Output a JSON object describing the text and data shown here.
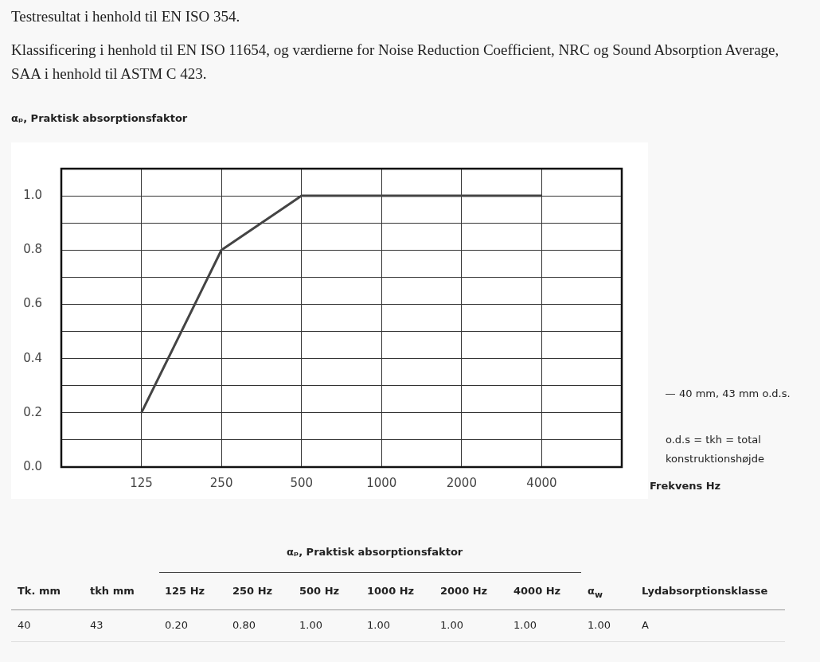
{
  "chart_data": {
    "type": "line",
    "title": "Testresultat i henhold til EN ISO 354.",
    "subtitle": "Klassificering i henhold til EN ISO 11654, og værdierne for Noise Reduction Coefficient, NRC og Sound Absorption Average, SAA i henhold til ASTM C 423.",
    "ylabel": "αₚ, Praktisk absorptionsfaktor",
    "xlabel": "Frekvens Hz",
    "x": [
      125,
      250,
      500,
      1000,
      2000,
      4000
    ],
    "series": [
      {
        "name": "40 mm, 43 mm o.d.s.",
        "color": "#444444",
        "values": [
          0.2,
          0.8,
          1.0,
          1.0,
          1.0,
          1.0
        ]
      }
    ],
    "log": "x",
    "xlim": [
      62.5,
      8000
    ],
    "xticks": [
      125,
      250,
      500,
      1000,
      2000,
      4000
    ],
    "ylim": [
      0,
      1.1
    ],
    "yticks": [
      {
        "value": 0.0,
        "label": "0.0"
      },
      {
        "value": 0.1,
        "label": null
      },
      {
        "value": 0.2,
        "label": "0.2"
      },
      {
        "value": 0.3,
        "label": null
      },
      {
        "value": 0.4,
        "label": "0.4"
      },
      {
        "value": 0.5,
        "label": null
      },
      {
        "value": 0.6,
        "label": "0.6"
      },
      {
        "value": 0.7,
        "label": null
      },
      {
        "value": 0.8,
        "label": "0.8"
      },
      {
        "value": 0.9,
        "label": null
      },
      {
        "value": 1.0,
        "label": "1.0"
      }
    ],
    "grid": true,
    "legend": "right",
    "marker": "none",
    "line_style": "solid",
    "annotations": [
      "o.d.s = tkh = total konstruktionshøjde",
      "αₚ, Praktisk absorptionsfaktor",
      "Tk. mm",
      "tkh mm",
      "125 Hz",
      "250 Hz",
      "500 Hz",
      "1000 Hz",
      "2000 Hz",
      "4000 Hz",
      "α$_{w}$",
      "Lydabsorptionsklasse",
      "40",
      "43",
      "0.20",
      "0.80",
      "1.00",
      "1.00",
      "1.00",
      "1.00",
      "1.00",
      "A"
    ]
  }
}
